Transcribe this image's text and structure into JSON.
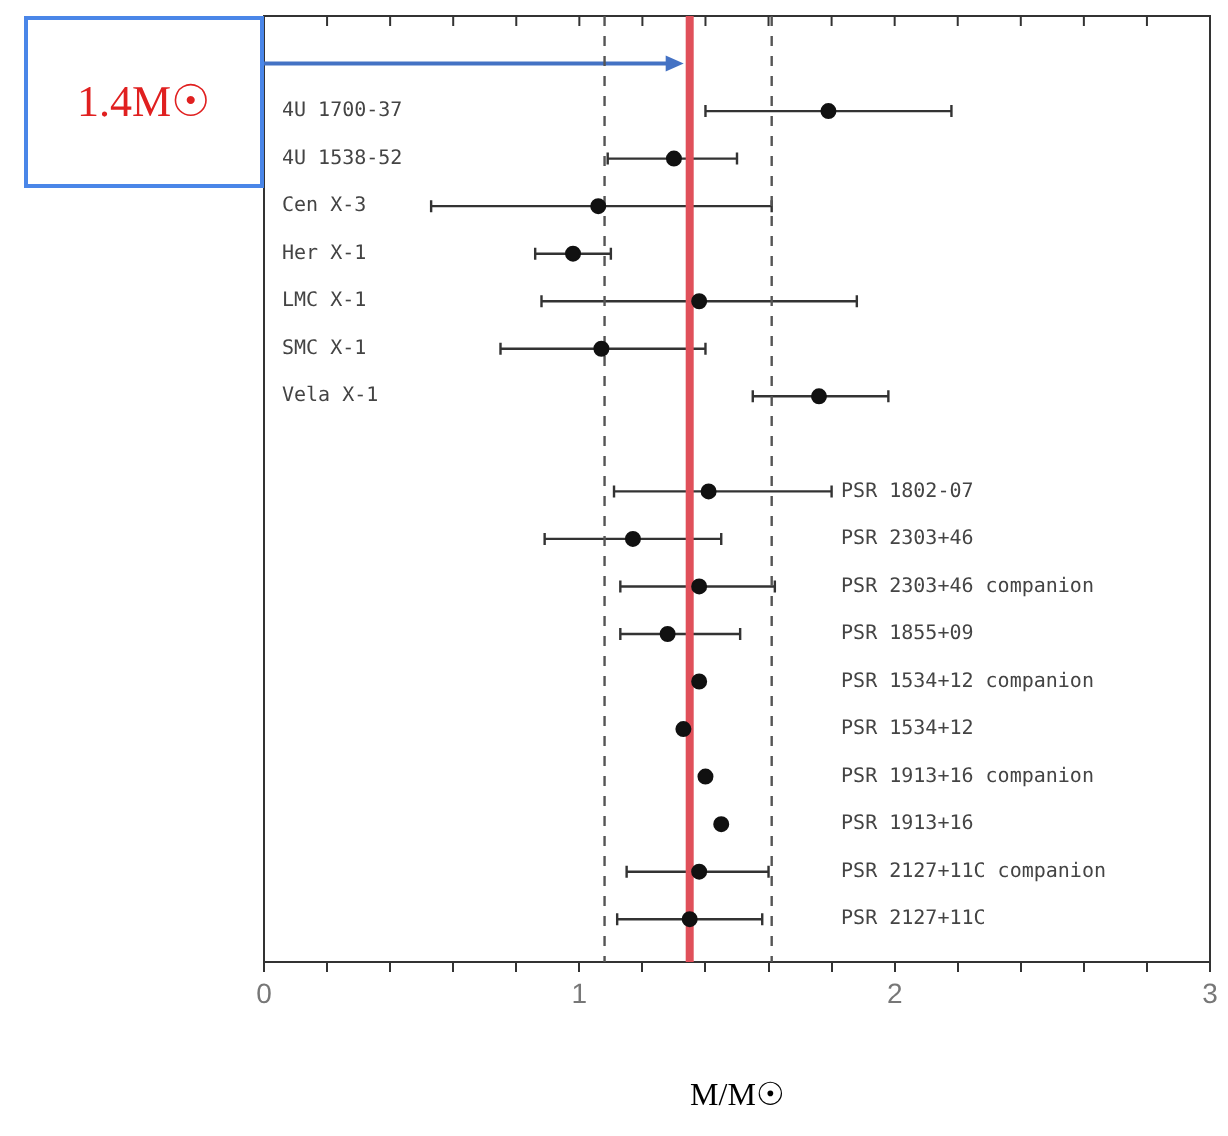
{
  "chart_data": {
    "type": "scatter",
    "orientation": "horizontal",
    "xlabel": "M/M☉",
    "categories": [
      null,
      "4U 1700-37",
      "4U 1538-52",
      "Cen X-3",
      "Her X-1",
      "LMC X-1",
      "SMC X-1",
      "Vela X-1",
      null,
      "PSR 1802-07",
      "PSR 2303+46",
      "PSR 2303+46 companion",
      "PSR 1855+09",
      "PSR 1534+12 companion",
      "PSR 1534+12",
      "PSR 1913+16 companion",
      "PSR 1913+16",
      "PSR 2127+11C companion",
      "PSR 2127+11C"
    ],
    "values": [
      null,
      1.79,
      1.3,
      1.06,
      0.98,
      1.38,
      1.07,
      1.76,
      null,
      1.41,
      1.17,
      1.38,
      1.28,
      1.38,
      1.33,
      1.4,
      1.45,
      1.38,
      1.35
    ],
    "errors": [
      null,
      [
        1.4,
        2.18
      ],
      [
        1.09,
        1.5
      ],
      [
        0.53,
        1.61
      ],
      [
        0.86,
        1.1
      ],
      [
        0.88,
        1.88
      ],
      [
        0.75,
        1.4
      ],
      [
        1.55,
        1.98
      ],
      null,
      [
        1.11,
        1.8
      ],
      [
        0.89,
        1.45
      ],
      [
        1.13,
        1.62
      ],
      [
        1.13,
        1.51
      ],
      null,
      null,
      null,
      null,
      [
        1.15,
        1.6
      ],
      [
        1.12,
        1.58
      ]
    ],
    "color": "#111111",
    "marker": "circle",
    "grid": false,
    "legend": false,
    "xlim": [
      0,
      3
    ],
    "xticks": [
      0,
      {
        "value": 0.2,
        "label": null
      },
      {
        "value": 0.4,
        "label": null
      },
      {
        "value": 0.6,
        "label": null
      },
      {
        "value": 0.8,
        "label": null
      },
      1,
      {
        "value": 1.2,
        "label": null
      },
      {
        "value": 1.4,
        "label": null
      },
      {
        "value": 1.6,
        "label": null
      },
      {
        "value": 1.8,
        "label": null
      },
      2,
      {
        "value": 2.2,
        "label": null
      },
      {
        "value": 2.4,
        "label": null
      },
      {
        "value": 2.6,
        "label": null
      },
      {
        "value": 2.8,
        "label": null
      },
      3
    ],
    "ref_lines": [
      {
        "axis": "x",
        "value": 1.35,
        "label": "1.4M☉",
        "color": "#e0505a"
      },
      {
        "axis": "x",
        "value": 1.08,
        "color": "#555555",
        "line_style": "dashed"
      },
      {
        "axis": "x",
        "value": 1.61,
        "color": "#555555",
        "line_style": "dashed"
      }
    ]
  }
}
